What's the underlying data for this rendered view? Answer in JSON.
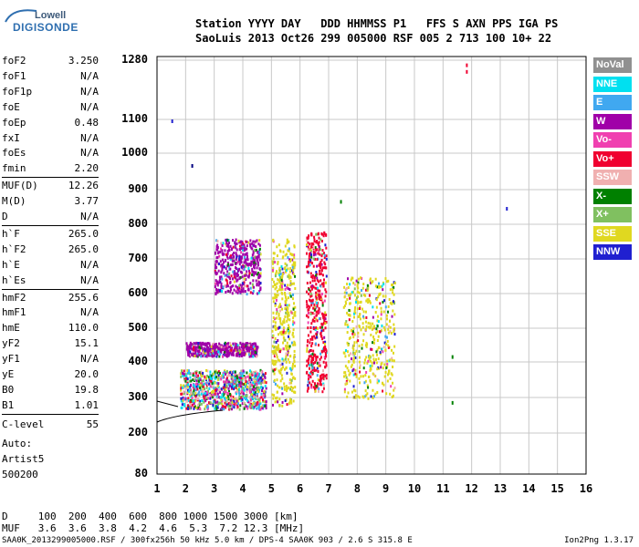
{
  "logo": {
    "top": "Lowell",
    "bottom": "DIGISONDE"
  },
  "header": {
    "line1": "Station YYYY DAY   DDD HHMMSS P1   FFS S AXN PPS IGA PS",
    "line2": "SaoLuis 2013 Oct26 299 005000 RSF 005 2 713 100 10+ 22"
  },
  "params": [
    {
      "name": "foF2",
      "value": "3.250"
    },
    {
      "name": "foF1",
      "value": "N/A"
    },
    {
      "name": "foF1p",
      "value": "N/A"
    },
    {
      "name": "foE",
      "value": "N/A"
    },
    {
      "name": "foEp",
      "value": "0.48"
    },
    {
      "name": "fxI",
      "value": "N/A"
    },
    {
      "name": "foEs",
      "value": "N/A"
    },
    {
      "name": "fmin",
      "value": "2.20"
    },
    {
      "name": "MUF(D)",
      "value": "12.26"
    },
    {
      "name": "M(D)",
      "value": "3.77"
    },
    {
      "name": "D",
      "value": "N/A"
    },
    {
      "name": "h`F",
      "value": "265.0"
    },
    {
      "name": "h`F2",
      "value": "265.0"
    },
    {
      "name": "h`E",
      "value": "N/A"
    },
    {
      "name": "h`Es",
      "value": "N/A"
    },
    {
      "name": "hmF2",
      "value": "255.6"
    },
    {
      "name": "hmF1",
      "value": "N/A"
    },
    {
      "name": "hmE",
      "value": "110.0"
    },
    {
      "name": "yF2",
      "value": "15.1"
    },
    {
      "name": "yF1",
      "value": "N/A"
    },
    {
      "name": "yE",
      "value": "20.0"
    },
    {
      "name": "B0",
      "value": "19.8"
    },
    {
      "name": "B1",
      "value": "1.01"
    },
    {
      "name": "C-level",
      "value": "55"
    }
  ],
  "auto": {
    "l1": "Auto:",
    "l2": "Artist5",
    "l3": "500200"
  },
  "legend": [
    {
      "label": "NoVal",
      "color": "#909090"
    },
    {
      "label": "NNE",
      "color": "#00e0f0"
    },
    {
      "label": "E",
      "color": "#40a8f0"
    },
    {
      "label": "W",
      "color": "#a000a8"
    },
    {
      "label": "Vo-",
      "color": "#f040b0"
    },
    {
      "label": "Vo+",
      "color": "#f00030"
    },
    {
      "label": "SSW",
      "color": "#f0b0b0"
    },
    {
      "label": "X-",
      "color": "#008000"
    },
    {
      "label": "X+",
      "color": "#80c060"
    },
    {
      "label": "SSE",
      "color": "#e0d820"
    },
    {
      "label": "NNW",
      "color": "#2020d0"
    }
  ],
  "chart_data": {
    "type": "scatter",
    "x_ticks": [
      "1",
      "2",
      "3",
      "4",
      "5",
      "6",
      "7",
      "8",
      "9",
      "10",
      "11",
      "12",
      "13",
      "14",
      "15",
      "16"
    ],
    "y_ticks": [
      "1280",
      "1100",
      "1000",
      "900",
      "800",
      "700",
      "600",
      "500",
      "400",
      "300",
      "200",
      "80"
    ],
    "xlim": [
      1,
      16
    ],
    "grid": true,
    "clusters": [
      {
        "x": [
          1.8,
          4.8
        ],
        "y": [
          270,
          380
        ],
        "direction": "mixed"
      },
      {
        "x": [
          2.0,
          4.5
        ],
        "y": [
          420,
          460
        ],
        "direction": "W"
      },
      {
        "x": [
          3.0,
          4.6
        ],
        "y": [
          600,
          760
        ],
        "direction": "W"
      },
      {
        "x": [
          5.0,
          5.8
        ],
        "y": [
          280,
          760
        ],
        "direction": "SSE"
      },
      {
        "x": [
          6.2,
          6.9
        ],
        "y": [
          320,
          780
        ],
        "direction": "Vo+"
      },
      {
        "x": [
          7.5,
          9.3
        ],
        "y": [
          300,
          650
        ],
        "direction": "SSE"
      }
    ]
  },
  "dmuf": {
    "d_row": "D     100  200  400  600  800 1000 1500 3000 [km]",
    "muf_row": "MUF   3.6  3.6  3.8  4.2  4.6  5.3  7.2 12.3 [MHz]"
  },
  "footer": {
    "left": "SAA0K_2013299005000.RSF / 300fx256h 50 kHz 5.0 km / DPS-4 SAA0K 903 / 2.6 S 315.8 E",
    "right": "Ion2Png 1.3.17"
  }
}
